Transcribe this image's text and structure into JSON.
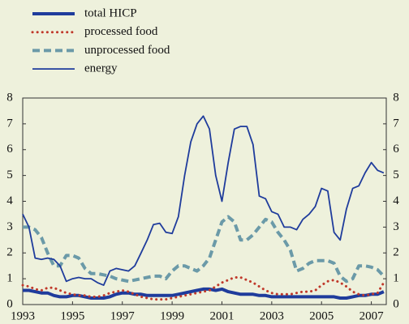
{
  "chart_data": {
    "type": "line",
    "legend": "upper left",
    "x": [
      1993,
      1993.25,
      1993.5,
      1993.75,
      1994,
      1994.25,
      1994.5,
      1994.75,
      1995,
      1995.25,
      1995.5,
      1995.75,
      1996,
      1996.25,
      1996.5,
      1996.75,
      1997,
      1997.25,
      1997.5,
      1997.75,
      1998,
      1998.25,
      1998.5,
      1998.75,
      1999,
      1999.25,
      1999.5,
      1999.75,
      2000,
      2000.25,
      2000.5,
      2000.75,
      2001,
      2001.25,
      2001.5,
      2001.75,
      2002,
      2002.25,
      2002.5,
      2002.75,
      2003,
      2003.25,
      2003.5,
      2003.75,
      2004,
      2004.25,
      2004.5,
      2004.75,
      2005,
      2005.25,
      2005.5,
      2005.75,
      2006,
      2006.25,
      2006.5,
      2006.75,
      2007,
      2007.25,
      2007.5
    ],
    "series": [
      {
        "name": "total HICP",
        "color": "#1f3c9c",
        "style": "thick",
        "values": [
          0.55,
          0.55,
          0.5,
          0.45,
          0.45,
          0.35,
          0.3,
          0.3,
          0.35,
          0.35,
          0.3,
          0.25,
          0.25,
          0.25,
          0.3,
          0.4,
          0.45,
          0.45,
          0.4,
          0.4,
          0.35,
          0.35,
          0.35,
          0.35,
          0.35,
          0.4,
          0.45,
          0.5,
          0.55,
          0.6,
          0.6,
          0.55,
          0.6,
          0.5,
          0.45,
          0.4,
          0.4,
          0.4,
          0.35,
          0.35,
          0.3,
          0.3,
          0.3,
          0.3,
          0.3,
          0.3,
          0.3,
          0.3,
          0.3,
          0.3,
          0.3,
          0.25,
          0.25,
          0.3,
          0.35,
          0.35,
          0.4,
          0.4,
          0.5
        ]
      },
      {
        "name": "processed food",
        "color": "#c0392b",
        "style": "dotted",
        "values": [
          0.75,
          0.7,
          0.6,
          0.55,
          0.65,
          0.65,
          0.55,
          0.45,
          0.4,
          0.35,
          0.35,
          0.3,
          0.3,
          0.35,
          0.45,
          0.5,
          0.55,
          0.5,
          0.4,
          0.3,
          0.25,
          0.2,
          0.2,
          0.2,
          0.25,
          0.3,
          0.35,
          0.4,
          0.45,
          0.5,
          0.55,
          0.7,
          0.85,
          0.95,
          1.05,
          1.05,
          0.95,
          0.85,
          0.7,
          0.55,
          0.45,
          0.4,
          0.4,
          0.4,
          0.45,
          0.5,
          0.5,
          0.55,
          0.75,
          0.9,
          0.95,
          0.85,
          0.7,
          0.5,
          0.4,
          0.35,
          0.4,
          0.45,
          0.85
        ]
      },
      {
        "name": "unprocessed food",
        "color": "#6b9aa8",
        "style": "dashed",
        "values": [
          3.0,
          3.0,
          2.9,
          2.6,
          2.0,
          1.5,
          1.5,
          1.9,
          1.9,
          1.8,
          1.4,
          1.2,
          1.2,
          1.15,
          1.1,
          1.0,
          0.95,
          0.9,
          0.95,
          1.0,
          1.05,
          1.1,
          1.1,
          1.0,
          1.3,
          1.5,
          1.5,
          1.4,
          1.3,
          1.5,
          1.8,
          2.5,
          3.2,
          3.4,
          3.2,
          2.5,
          2.5,
          2.7,
          3.0,
          3.3,
          3.2,
          2.8,
          2.5,
          2.1,
          1.3,
          1.4,
          1.6,
          1.7,
          1.7,
          1.7,
          1.6,
          1.1,
          0.9,
          1.0,
          1.5,
          1.5,
          1.45,
          1.35,
          1.1
        ]
      },
      {
        "name": "energy",
        "color": "#1f3c9c",
        "style": "thin",
        "values": [
          3.5,
          3.0,
          1.8,
          1.75,
          1.8,
          1.75,
          1.5,
          0.9,
          1.0,
          1.05,
          1.0,
          1.0,
          0.85,
          0.75,
          1.3,
          1.4,
          1.35,
          1.3,
          1.5,
          2.0,
          2.5,
          3.1,
          3.15,
          2.8,
          2.75,
          3.4,
          5.0,
          6.3,
          7.0,
          7.3,
          6.8,
          5.0,
          4.0,
          5.5,
          6.8,
          6.9,
          6.9,
          6.2,
          4.2,
          4.1,
          3.6,
          3.5,
          3.0,
          3.0,
          2.9,
          3.3,
          3.5,
          3.8,
          4.5,
          4.4,
          2.8,
          2.5,
          3.7,
          4.5,
          4.6,
          5.1,
          5.5,
          5.2,
          5.1
        ]
      }
    ],
    "xlim": [
      1993,
      2007.6
    ],
    "xticks": [
      1993,
      1995,
      1997,
      1999,
      2001,
      2003,
      2005,
      2007
    ],
    "ylim": [
      0,
      8
    ],
    "yticks": [
      0,
      1,
      2,
      3,
      4,
      5,
      6,
      7,
      8
    ]
  }
}
